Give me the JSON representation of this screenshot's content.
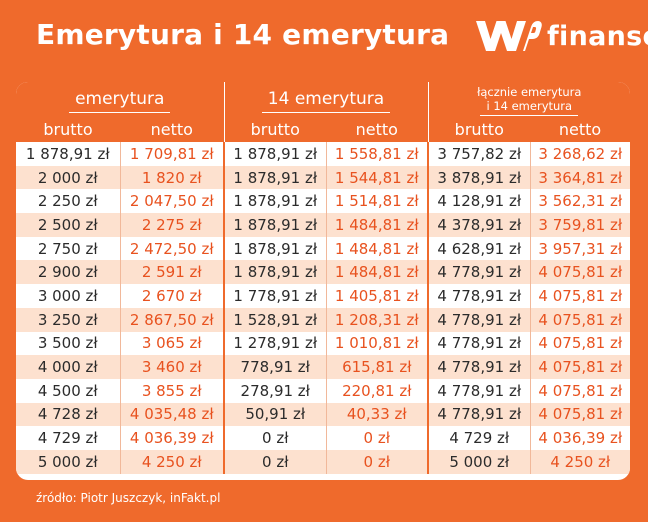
{
  "header": {
    "title": "Emerytura i 14 emerytura",
    "logo_text": "finanse",
    "logo_mark": "wp-logo-mark",
    "brand_color": "#ef6a2c"
  },
  "table": {
    "groups": {
      "emerytura": "emerytura",
      "czternasta": "14 emerytura",
      "lacznie_line1": "łącznie emerytura",
      "lacznie_line2": "i 14 emerytura"
    },
    "subheaders": [
      "brutto",
      "netto",
      "brutto",
      "netto",
      "brutto",
      "netto"
    ],
    "rows": [
      [
        "1 878,91 zł",
        "1 709,81 zł",
        "1 878,91 zł",
        "1 558,81 zł",
        "3 757,82 zł",
        "3 268,62 zł"
      ],
      [
        "2 000 zł",
        "1 820 zł",
        "1 878,91 zł",
        "1 544,81 zł",
        "3 878,91 zł",
        "3 364,81 zł"
      ],
      [
        "2 250 zł",
        "2 047,50 zł",
        "1 878,91 zł",
        "1 514,81 zł",
        "4 128,91 zł",
        "3 562,31 zł"
      ],
      [
        "2 500 zł",
        "2 275 zł",
        "1 878,91 zł",
        "1 484,81 zł",
        "4 378,91 zł",
        "3 759,81 zł"
      ],
      [
        "2 750 zł",
        "2 472,50 zł",
        "1 878,91 zł",
        "1 484,81 zł",
        "4 628,91 zł",
        "3 957,31 zł"
      ],
      [
        "2 900 zł",
        "2 591 zł",
        "1 878,91 zł",
        "1 484,81 zł",
        "4 778,91 zł",
        "4 075,81 zł"
      ],
      [
        "3 000 zł",
        "2 670 zł",
        "1 778,91 zł",
        "1 405,81 zł",
        "4 778,91 zł",
        "4 075,81 zł"
      ],
      [
        "3 250 zł",
        "2 867,50 zł",
        "1 528,91 zł",
        "1 208,31 zł",
        "4 778,91 zł",
        "4 075,81 zł"
      ],
      [
        "3 500 zł",
        "3 065 zł",
        "1 278,91 zł",
        "1 010,81 zł",
        "4 778,91 zł",
        "4 075,81 zł"
      ],
      [
        "4 000 zł",
        "3 460 zł",
        "778,91 zł",
        "615,81 zł",
        "4 778,91 zł",
        "4 075,81 zł"
      ],
      [
        "4 500 zł",
        "3 855 zł",
        "278,91 zł",
        "220,81 zł",
        "4 778,91 zł",
        "4 075,81 zł"
      ],
      [
        "4 728 zł",
        "4 035,48 zł",
        "50,91 zł",
        "40,33 zł",
        "4 778,91 zł",
        "4 075,81 zł"
      ],
      [
        "4 729 zł",
        "4 036,39 zł",
        "0 zł",
        "0 zł",
        "4 729 zł",
        "4 036,39 zł"
      ],
      [
        "5 000 zł",
        "4 250 zł",
        "0 zł",
        "0 zł",
        "5 000 zł",
        "4 250 zł"
      ]
    ]
  },
  "footer": {
    "source": "źródło: Piotr Juszczyk, inFakt.pl"
  }
}
